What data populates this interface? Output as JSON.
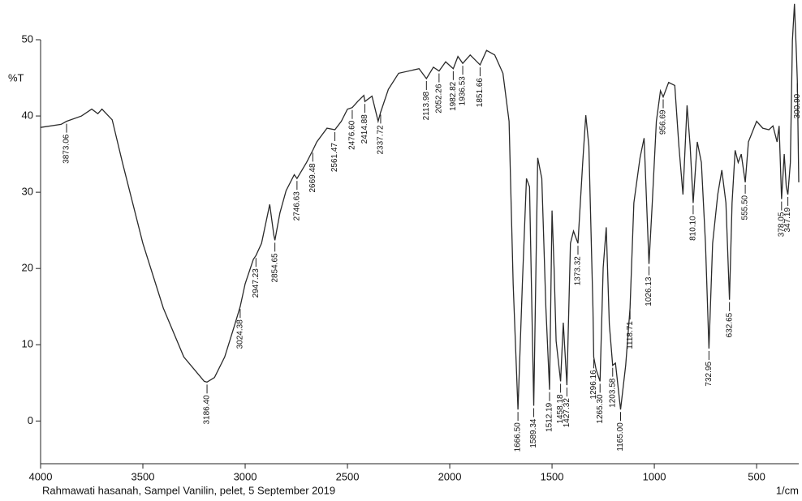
{
  "chart_data": {
    "type": "line",
    "y_label": "%T",
    "x_label": "1/cm",
    "footer": "Rahmawati hasanah, Sampel Vanilin, pelet, 5 September 2019",
    "xlim": [
      4000,
      294
    ],
    "ylim": [
      -5.6,
      50
    ],
    "xticks": [
      4000,
      3500,
      3000,
      2500,
      2000,
      1500,
      1000,
      500
    ],
    "yticks": [
      0,
      10,
      20,
      30,
      40,
      50
    ],
    "x": [
      4000,
      3900,
      3873.06,
      3800,
      3750,
      3720,
      3700,
      3650,
      3600,
      3550,
      3500,
      3400,
      3300,
      3200,
      3186.4,
      3150,
      3100,
      3050,
      3024.38,
      3000,
      2960,
      2947.23,
      2920,
      2880,
      2860,
      2854.65,
      2830,
      2800,
      2760,
      2746.63,
      2700,
      2669.48,
      2650,
      2600,
      2561.47,
      2530,
      2500,
      2476.6,
      2450,
      2420,
      2414.88,
      2380,
      2350,
      2337.72,
      2300,
      2250,
      2150,
      2113.98,
      2080,
      2052.26,
      2020,
      1982.82,
      1960,
      1936.53,
      1900,
      1851.66,
      1820,
      1780,
      1740,
      1710,
      1690,
      1666.5,
      1645,
      1625,
      1610,
      1589.34,
      1570,
      1550,
      1530,
      1512.19,
      1500,
      1490,
      1480,
      1458.18,
      1445,
      1427.32,
      1410,
      1395,
      1373.32,
      1350,
      1335,
      1320,
      1300,
      1296.16,
      1285,
      1265.3,
      1250,
      1235,
      1220,
      1203.58,
      1190,
      1165,
      1140,
      1118.71,
      1100,
      1070,
      1050,
      1026.13,
      1010,
      990,
      970,
      956.69,
      930,
      900,
      880,
      860,
      840,
      825,
      810.1,
      790,
      770,
      750,
      732.95,
      715,
      690,
      670,
      650,
      632.65,
      620,
      605,
      590,
      575,
      555.5,
      540,
      500,
      470,
      440,
      420,
      400,
      390,
      378.05,
      365,
      355,
      347.19,
      335,
      325,
      315,
      305,
      300.9,
      294
    ],
    "series": [
      {
        "color": "#2a2a2a",
        "values": [
          38.5,
          38.9,
          39.3,
          40,
          40.9,
          40.3,
          40.9,
          39.5,
          33.9,
          28.6,
          23.3,
          14.8,
          8.4,
          5.2,
          5.1,
          5.7,
          8.4,
          12.7,
          15,
          18,
          21.2,
          21.7,
          23.3,
          28.4,
          24.4,
          23.7,
          27.3,
          30.2,
          32.3,
          31.8,
          33.9,
          35.5,
          36.6,
          38.4,
          38.2,
          39.3,
          40.9,
          41.1,
          41.9,
          42.7,
          41.9,
          42.6,
          39.3,
          40.5,
          43.5,
          45.6,
          46.2,
          44.9,
          46.4,
          45.9,
          47.1,
          46.2,
          47.8,
          46.9,
          48,
          46.7,
          48.6,
          48,
          45.6,
          39.3,
          18,
          1.5,
          18,
          31.8,
          30.7,
          2,
          34.5,
          31.8,
          14.8,
          4.1,
          27.6,
          20.1,
          10.5,
          5.2,
          12.9,
          4.7,
          23.3,
          24.9,
          23.3,
          33.9,
          40.1,
          36.1,
          14.8,
          8.4,
          6.8,
          5.2,
          20.1,
          25.4,
          12.7,
          7.3,
          7.6,
          1.5,
          7.3,
          14.8,
          28.6,
          34.5,
          37.1,
          20.6,
          28.6,
          39.3,
          43.3,
          42.5,
          44.4,
          44,
          36.1,
          29.7,
          41.4,
          36.1,
          28.6,
          36.6,
          33.9,
          23.3,
          9.5,
          23.3,
          29.7,
          32.9,
          28.6,
          15.9,
          28.6,
          35.5,
          33.9,
          35,
          31.3,
          36.6,
          39.3,
          38.4,
          38.2,
          38.7,
          36.6,
          38.7,
          29.1,
          35,
          30.7,
          29.7,
          33.9,
          49.9,
          54.7,
          47.8,
          44.6,
          31.3
        ]
      }
    ],
    "peaks": {
      "values": [
        3873.06,
        3186.4,
        3024.38,
        2947.23,
        2854.65,
        2746.63,
        2669.48,
        2561.47,
        2476.6,
        2414.88,
        2337.72,
        2113.98,
        2052.26,
        1982.82,
        1936.53,
        1851.66,
        1666.5,
        1589.34,
        1512.19,
        1458.18,
        1427.32,
        1373.32,
        1296.16,
        1265.3,
        1203.58,
        1165,
        1118.71,
        1026.13,
        956.69,
        810.1,
        732.95,
        632.65,
        555.5,
        378.05,
        347.19,
        300.9
      ],
      "value_labels": [
        "3873.06",
        "3186.40",
        "3024.38",
        "2947.23",
        "2854.65",
        "2746.63",
        "2669.48",
        "2561.47",
        "2476.60",
        "2414.88",
        "2337.72",
        "2113.98",
        "2052.26",
        "1982.82",
        "1936.53",
        "1851.66",
        "1666.50",
        "1589.34",
        "1512.19",
        "1458.18",
        "1427.32",
        "1373.32",
        "1296.16",
        "1265.30",
        "1203.58",
        "1165.00",
        "1118.71",
        "1026.13",
        "956.69",
        "810.10",
        "732.95",
        "632.65",
        "555.50",
        "378.05",
        "347.19",
        "300.90"
      ],
      "transmittance": [
        39.3,
        5.1,
        15,
        21.7,
        23.7,
        31.8,
        35.5,
        38.2,
        41.1,
        41.9,
        40.5,
        44.9,
        45.9,
        46.2,
        46.9,
        46.7,
        1.5,
        2,
        4.1,
        5.2,
        4.7,
        23.3,
        8.4,
        5.2,
        7.3,
        1.5,
        14.8,
        20.6,
        42.5,
        28.6,
        9.5,
        15.9,
        31.3,
        29.1,
        29.7,
        44.6
      ]
    }
  }
}
